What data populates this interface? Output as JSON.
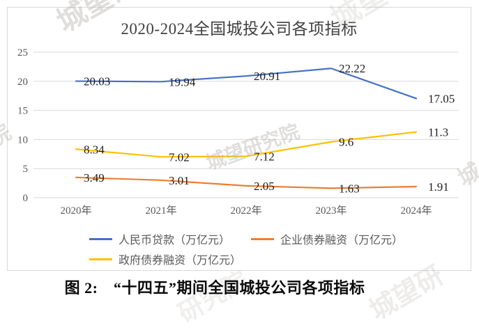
{
  "page": {
    "caption": "图 2:　“十四五”期间全国城投公司各项指标"
  },
  "watermarks": [
    "城望研",
    "城望研",
    "城望研究院",
    "城",
    "院",
    "研究院",
    "城望研"
  ],
  "chart_data": {
    "type": "line",
    "title": "2020-2024全国城投公司各项指标",
    "categories": [
      "2020年",
      "2021年",
      "2022年",
      "2023年",
      "2024年"
    ],
    "series": [
      {
        "name": "人民币贷款（万亿元）",
        "color": "#4472C4",
        "values": [
          20.03,
          19.94,
          20.91,
          22.22,
          17.05
        ]
      },
      {
        "name": "企业债券融资（万亿元）",
        "color": "#ED7D31",
        "values": [
          3.49,
          3.01,
          2.05,
          1.63,
          1.91
        ]
      },
      {
        "name": "政府债券融资（万亿元）",
        "color": "#FFC000",
        "values": [
          8.34,
          7.02,
          7.12,
          9.6,
          11.3
        ]
      }
    ],
    "ylim": [
      0,
      25
    ],
    "yticks": [
      0,
      5,
      10,
      15,
      20,
      25
    ],
    "grid": true,
    "gridline_color": "#d9d9d9",
    "axis_label_color": "#595959",
    "data_label_color": "#1f1f1f",
    "data_labels": true,
    "legend_position": "bottom"
  }
}
